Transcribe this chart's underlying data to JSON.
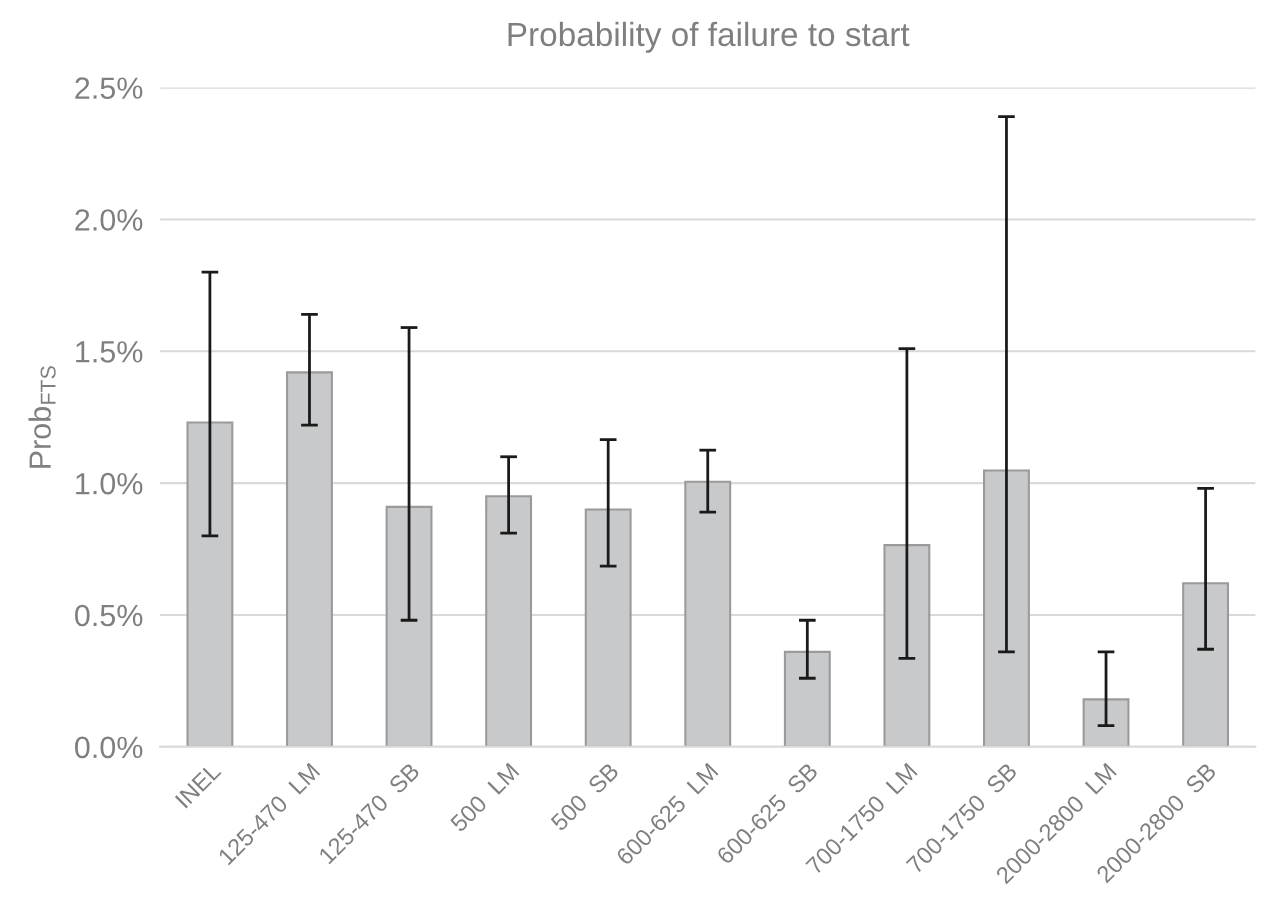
{
  "chart_data": {
    "type": "bar",
    "title": "Probability of failure to start",
    "ylabel": "Prob$_{FTS}$",
    "categories": [
      "INEL",
      "125-470  LM",
      "125-470  SB",
      "500  LM",
      "500  SB",
      "600-625  LM",
      "600-625  SB",
      "700-1750  LM",
      "700-1750  SB",
      "2000-2800  LM",
      "2000-2800  SB"
    ],
    "values": [
      1.23,
      1.42,
      0.91,
      0.95,
      0.9,
      1.005,
      0.36,
      0.765,
      1.048,
      0.18,
      0.62
    ],
    "errors": [
      [
        0.8,
        1.8
      ],
      [
        1.22,
        1.64
      ],
      [
        0.48,
        1.59
      ],
      [
        0.81,
        1.1
      ],
      [
        0.685,
        1.165
      ],
      [
        0.89,
        1.125
      ],
      [
        0.26,
        0.48
      ],
      [
        0.335,
        1.51
      ],
      [
        0.36,
        2.39
      ],
      [
        0.08,
        0.36
      ],
      [
        0.37,
        0.98
      ]
    ],
    "color": "#c8c9cb",
    "ylim": [
      0,
      2.5
    ],
    "yticks": [
      {
        "value": 0,
        "label": "0.0%"
      },
      {
        "value": 0.5,
        "label": "0.5%"
      },
      {
        "value": 1.0,
        "label": "1.0%"
      },
      {
        "value": 1.5,
        "label": "1.5%"
      },
      {
        "value": 2.0,
        "label": "2.0%"
      },
      {
        "value": 2.5,
        "label": "2.5%"
      }
    ],
    "grid": "y"
  }
}
